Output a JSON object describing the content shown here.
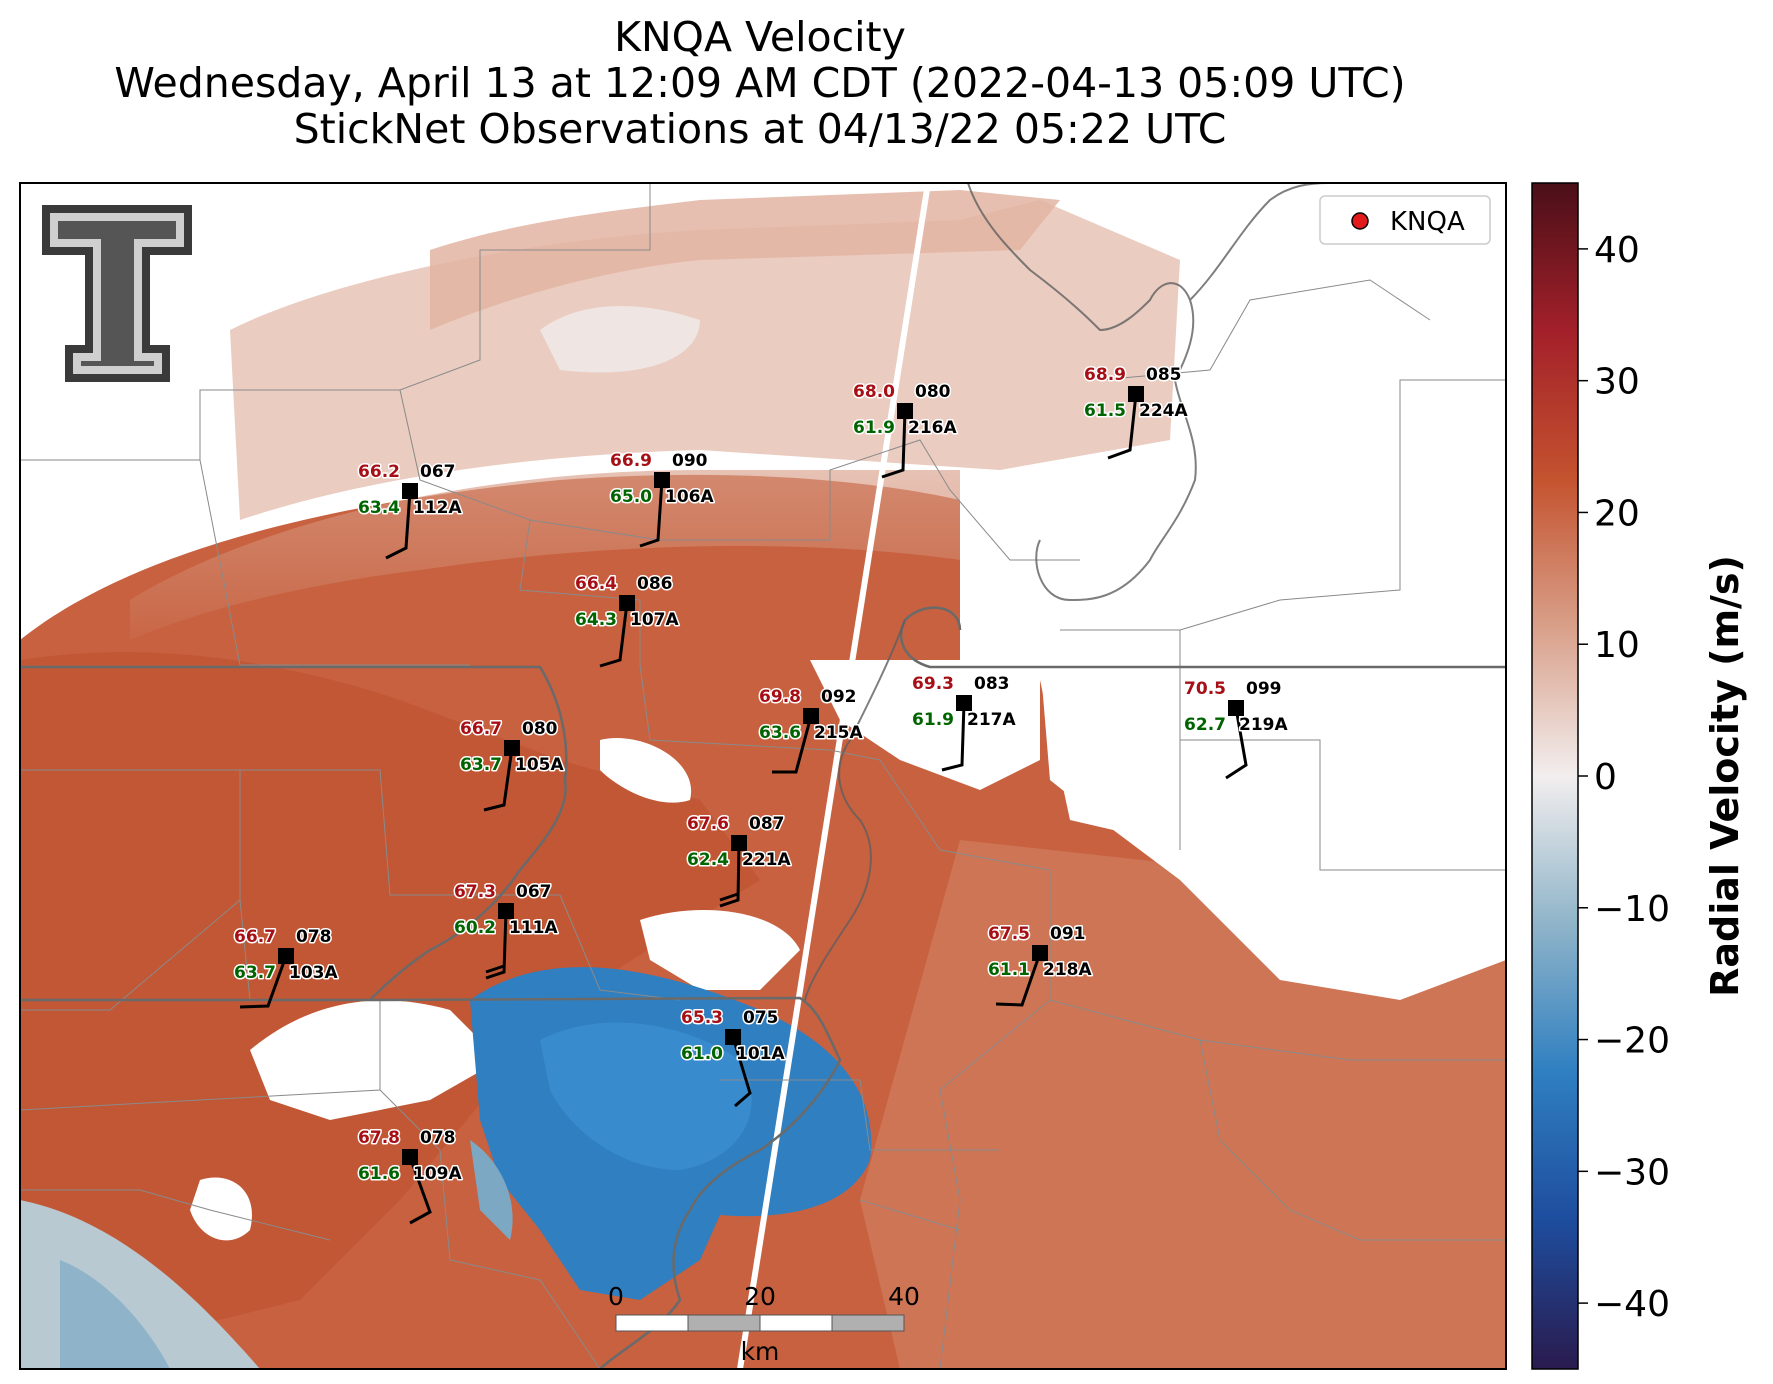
{
  "title": {
    "line1": "KNQA Velocity",
    "line2": "Wednesday, April 13 at 12:09 AM CDT (2022-04-13 05:09 UTC)",
    "line3": "StickNet Observations at 04/13/22 05:22 UTC"
  },
  "legend": {
    "label": "KNQA",
    "marker_color": "#e31a1c"
  },
  "colorbar": {
    "label": "Radial Velocity (m/s)",
    "min": -45,
    "max": 45,
    "ticks": [
      "40",
      "30",
      "20",
      "10",
      "0",
      "−10",
      "−20",
      "−30",
      "−40"
    ],
    "tick_values": [
      40,
      30,
      20,
      10,
      0,
      -10,
      -20,
      -30,
      -40
    ],
    "colors": [
      "#2a1b4e",
      "#1e4d9e",
      "#2f7fc1",
      "#8fb4c9",
      "#f2eeee",
      "#d9a08a",
      "#c4532f",
      "#a3202a",
      "#4a0f18"
    ]
  },
  "scale_bar": {
    "ticks": [
      "0",
      "20",
      "40"
    ],
    "unit": "km"
  },
  "logo": {
    "text": "TT"
  },
  "stations": [
    {
      "id": "112A",
      "temp": "66.2",
      "dew": "63.4",
      "dir": "067"
    },
    {
      "id": "106A",
      "temp": "66.9",
      "dew": "65.0",
      "dir": "090"
    },
    {
      "id": "216A",
      "temp": "68.0",
      "dew": "61.9",
      "dir": "080"
    },
    {
      "id": "224A",
      "temp": "68.9",
      "dew": "61.5",
      "dir": "085"
    },
    {
      "id": "107A",
      "temp": "66.4",
      "dew": "64.3",
      "dir": "086"
    },
    {
      "id": "215A",
      "temp": "69.8",
      "dew": "63.6",
      "dir": "092"
    },
    {
      "id": "217A",
      "temp": "69.3",
      "dew": "61.9",
      "dir": "083"
    },
    {
      "id": "219A",
      "temp": "70.5",
      "dew": "62.7",
      "dir": "099"
    },
    {
      "id": "105A",
      "temp": "66.7",
      "dew": "63.7",
      "dir": "080"
    },
    {
      "id": "221A",
      "temp": "67.6",
      "dew": "62.4",
      "dir": "087"
    },
    {
      "id": "111A",
      "temp": "67.3",
      "dew": "60.2",
      "dir": "067"
    },
    {
      "id": "103A",
      "temp": "66.7",
      "dew": "63.7",
      "dir": "078"
    },
    {
      "id": "218A",
      "temp": "67.5",
      "dew": "61.1",
      "dir": "091"
    },
    {
      "id": "101A",
      "temp": "65.3",
      "dew": "61.0",
      "dir": "075"
    },
    {
      "id": "109A",
      "temp": "67.8",
      "dew": "61.6",
      "dir": "078"
    }
  ]
}
